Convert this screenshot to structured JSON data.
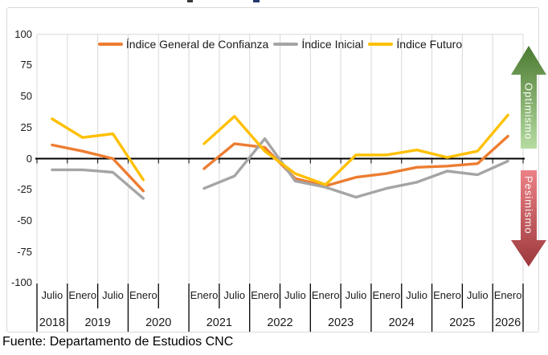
{
  "chart_data": {
    "type": "line",
    "categories": [
      "Julio 2018",
      "Enero 2019",
      "Julio 2019",
      "Enero 2020",
      "Julio 2020",
      "Enero 2021",
      "Julio 2021",
      "Enero 2022",
      "Julio 2022",
      "Enero 2023",
      "Julio 2023",
      "Enero 2024",
      "Julio 2024",
      "Enero 2025",
      "Julio 2025",
      "Enero 2026"
    ],
    "x_month_labels": [
      "Julio",
      "Enero",
      "Julio",
      "Enero",
      "",
      "Enero",
      "Julio",
      "Enero",
      "Julio",
      "Enero",
      "Julio",
      "Enero",
      "Julio",
      "Enero",
      "Julio",
      "Enero"
    ],
    "x_year_spans": [
      {
        "label": "2018",
        "from": 0,
        "to": 1
      },
      {
        "label": "2019",
        "from": 1,
        "to": 3
      },
      {
        "label": "2020",
        "from": 3,
        "to": 5
      },
      {
        "label": "2021",
        "from": 5,
        "to": 7
      },
      {
        "label": "2022",
        "from": 7,
        "to": 9
      },
      {
        "label": "2023",
        "from": 9,
        "to": 11
      },
      {
        "label": "2024",
        "from": 11,
        "to": 13
      },
      {
        "label": "2025",
        "from": 13,
        "to": 15
      },
      {
        "label": "2026",
        "from": 15,
        "to": 16
      }
    ],
    "y_ticks": [
      100,
      75,
      50,
      25,
      0,
      -25,
      -50,
      -75,
      -100
    ],
    "ylim": [
      -100,
      100
    ],
    "grid": "vertical-only",
    "legend_position": "top-center",
    "data_gap_note": "Julio 2020 has no data (lines broken)",
    "series": [
      {
        "name": "Índice General de Confianza",
        "color": "#ED7D31",
        "values": [
          11,
          6,
          0,
          -26,
          null,
          -8,
          12,
          9,
          -16,
          -22,
          -15,
          -12,
          -7,
          -6,
          -4,
          18
        ]
      },
      {
        "name": "Índice Inicial",
        "color": "#A5A5A5",
        "values": [
          -9,
          -9,
          -11,
          -32,
          null,
          -24,
          -14,
          16,
          -18,
          -23,
          -31,
          -24,
          -19,
          -10,
          -13,
          -2
        ]
      },
      {
        "name": "Índice Futuro",
        "color": "#FFC000",
        "values": [
          32,
          17,
          20,
          -17,
          null,
          12,
          34,
          6,
          -12,
          -21,
          3,
          3,
          7,
          1,
          6,
          35
        ]
      }
    ],
    "annotations": {
      "up": "Optimismo",
      "down": "Pesimismo"
    }
  },
  "source": {
    "text": "Fuente: Departamento de Estudios CNC"
  },
  "colors": {
    "line_general": "#ED7D31",
    "line_inicial": "#A5A5A5",
    "line_futuro": "#FFC000",
    "gridline": "#D9D9D9",
    "axis": "#000000",
    "optimism_green_dark": "#4C7A31",
    "optimism_green_light": "#B6DCA2",
    "pessimism_red_light": "#EC8186",
    "pessimism_red_dark": "#9C393D"
  }
}
